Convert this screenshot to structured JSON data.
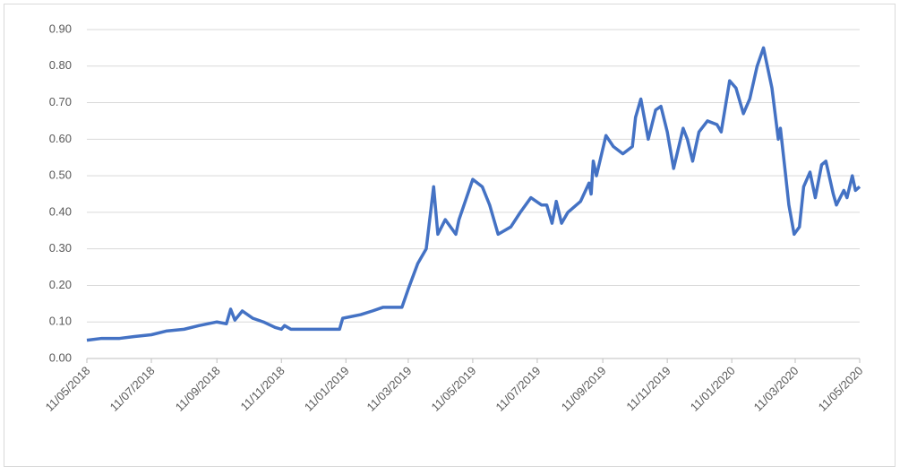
{
  "chart_data": {
    "type": "line",
    "x": [
      "11/05/2018",
      "25/05/2018",
      "11/06/2018",
      "25/06/2018",
      "11/07/2018",
      "25/07/2018",
      "11/08/2018",
      "25/08/2018",
      "11/09/2018",
      "20/09/2018",
      "24/09/2018",
      "28/09/2018",
      "05/10/2018",
      "15/10/2018",
      "25/10/2018",
      "05/11/2018",
      "11/11/2018",
      "14/11/2018",
      "20/11/2018",
      "11/12/2018",
      "25/12/2018",
      "05/01/2019",
      "08/01/2019",
      "25/01/2019",
      "05/02/2019",
      "15/02/2019",
      "25/02/2019",
      "05/03/2019",
      "11/03/2019",
      "20/03/2019",
      "28/03/2019",
      "04/04/2019",
      "08/04/2019",
      "15/04/2019",
      "25/04/2019",
      "28/04/2019",
      "11/05/2019",
      "20/05/2019",
      "27/05/2019",
      "04/06/2019",
      "16/06/2019",
      "25/06/2019",
      "05/07/2019",
      "15/07/2019",
      "20/07/2019",
      "25/07/2019",
      "29/07/2019",
      "03/08/2019",
      "09/08/2019",
      "21/08/2019",
      "29/08/2019",
      "31/08/2019",
      "02/09/2019",
      "05/09/2019",
      "14/09/2019",
      "21/09/2019",
      "30/09/2019",
      "09/10/2019",
      "12/10/2019",
      "17/10/2019",
      "24/10/2019",
      "31/10/2019",
      "05/11/2019",
      "11/11/2019",
      "17/11/2019",
      "26/11/2019",
      "30/11/2019",
      "05/12/2019",
      "11/12/2019",
      "19/12/2019",
      "28/12/2019",
      "01/01/2020",
      "09/01/2020",
      "15/01/2020",
      "22/01/2020",
      "28/01/2020",
      "04/02/2020",
      "10/02/2020",
      "18/02/2020",
      "24/02/2020",
      "26/02/2020",
      "02/03/2020",
      "05/03/2020",
      "10/03/2020",
      "15/03/2020",
      "19/03/2020",
      "25/03/2020",
      "30/03/2020",
      "05/04/2020",
      "09/04/2020",
      "16/04/2020",
      "19/04/2020",
      "26/04/2020",
      "29/04/2020",
      "04/05/2020",
      "07/05/2020",
      "11/05/2020"
    ],
    "series": [
      {
        "color": "#4472c4",
        "values": [
          0.05,
          0.055,
          0.055,
          0.06,
          0.065,
          0.075,
          0.08,
          0.09,
          0.1,
          0.095,
          0.135,
          0.105,
          0.13,
          0.11,
          0.1,
          0.085,
          0.08,
          0.09,
          0.08,
          0.08,
          0.08,
          0.08,
          0.11,
          0.12,
          0.13,
          0.14,
          0.14,
          0.14,
          0.19,
          0.26,
          0.3,
          0.47,
          0.34,
          0.38,
          0.34,
          0.38,
          0.49,
          0.47,
          0.42,
          0.34,
          0.36,
          0.4,
          0.44,
          0.42,
          0.42,
          0.37,
          0.43,
          0.37,
          0.4,
          0.43,
          0.48,
          0.45,
          0.54,
          0.5,
          0.61,
          0.58,
          0.56,
          0.58,
          0.66,
          0.71,
          0.6,
          0.68,
          0.69,
          0.62,
          0.52,
          0.63,
          0.6,
          0.54,
          0.62,
          0.65,
          0.64,
          0.62,
          0.76,
          0.74,
          0.67,
          0.71,
          0.8,
          0.85,
          0.74,
          0.6,
          0.63,
          0.5,
          0.42,
          0.34,
          0.36,
          0.47,
          0.51,
          0.44,
          0.53,
          0.54,
          0.45,
          0.42,
          0.46,
          0.44,
          0.5,
          0.46,
          0.47
        ]
      }
    ],
    "xlim": [
      "11/05/2018",
      "11/05/2020"
    ],
    "xticks": [
      "11/05/2018",
      "11/07/2018",
      "11/09/2018",
      "11/11/2018",
      "11/01/2019",
      "11/03/2019",
      "11/05/2019",
      "11/07/2019",
      "11/09/2019",
      "11/11/2019",
      "11/01/2020",
      "11/03/2020",
      "11/05/2020"
    ],
    "ylim": [
      0,
      0.9
    ],
    "yticks": [
      {
        "value": 0,
        "label": "0.00"
      },
      {
        "value": 0.1,
        "label": "0.10"
      },
      {
        "value": 0.2,
        "label": "0.20"
      },
      {
        "value": 0.3,
        "label": "0.30"
      },
      {
        "value": 0.4,
        "label": "0.40"
      },
      {
        "value": 0.5,
        "label": "0.50"
      },
      {
        "value": 0.6,
        "label": "0.60"
      },
      {
        "value": 0.7,
        "label": "0.70"
      },
      {
        "value": 0.8,
        "label": "0.80"
      },
      {
        "value": 0.9,
        "label": "0.90"
      }
    ],
    "grid": true
  }
}
